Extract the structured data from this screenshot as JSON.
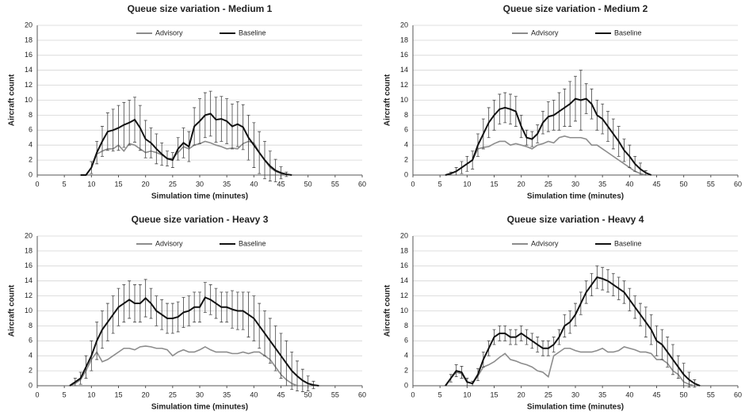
{
  "chart_data": [
    {
      "type": "line",
      "title": "Queue size variation - Medium 1",
      "xlabel": "Simulation time (minutes)",
      "ylabel": "Aircraft count",
      "xlim": [
        0,
        60
      ],
      "xticks": [
        0,
        5,
        10,
        15,
        20,
        25,
        30,
        35,
        40,
        45,
        50,
        55,
        60
      ],
      "ylim": [
        0,
        20
      ],
      "yticks": [
        0,
        2,
        4,
        6,
        8,
        10,
        12,
        14,
        16,
        18,
        20
      ],
      "grid": true,
      "legend": "top",
      "series": [
        {
          "name": "Advisory",
          "color": "#8c8c8c",
          "x": [
            9,
            10,
            11,
            12,
            13,
            14,
            15,
            16,
            17,
            18,
            19,
            20,
            21,
            22,
            23,
            24,
            25,
            26,
            27,
            28,
            29,
            30,
            31,
            32,
            33,
            34,
            35,
            36,
            37,
            38,
            39,
            40,
            41,
            42,
            43,
            44,
            45,
            46
          ],
          "values": [
            0,
            1,
            2.8,
            3.2,
            3.5,
            3.5,
            4,
            3.2,
            4.2,
            4,
            3.5,
            3,
            3.2,
            3,
            2.7,
            2.2,
            2.2,
            3,
            3.8,
            3.5,
            4,
            4.2,
            4.5,
            4.3,
            4,
            3.8,
            3.5,
            3.6,
            3.5,
            4.2,
            4.5,
            4.3,
            3,
            2,
            1,
            0.5,
            0.2,
            0
          ]
        },
        {
          "name": "Baseline",
          "color": "#111111",
          "x": [
            8,
            9,
            10,
            11,
            12,
            13,
            14,
            15,
            16,
            17,
            18,
            19,
            20,
            21,
            22,
            23,
            24,
            25,
            26,
            27,
            28,
            29,
            30,
            31,
            32,
            33,
            34,
            35,
            36,
            37,
            38,
            39,
            40,
            41,
            42,
            43,
            44,
            45,
            46,
            47
          ],
          "values": [
            0,
            0,
            1,
            3,
            4.5,
            5.8,
            6,
            6.3,
            6.7,
            7,
            7.4,
            6.3,
            4.8,
            4.3,
            3.5,
            2.8,
            2.2,
            2,
            3.5,
            4.3,
            3.8,
            6.5,
            7.2,
            8,
            8.2,
            7.4,
            7.5,
            7.2,
            6.5,
            6.8,
            6.4,
            5,
            4,
            3,
            2,
            1.2,
            0.6,
            0.3,
            0.1,
            0
          ],
          "errors": [
            0,
            0,
            0.8,
            1.5,
            2,
            2.5,
            2.8,
            3,
            3,
            3,
            3,
            3,
            2.5,
            2,
            2,
            1.5,
            1,
            1,
            1.5,
            2,
            2,
            2.5,
            3,
            3,
            3,
            3,
            3,
            3,
            3,
            3,
            3,
            3,
            3,
            2.8,
            2.5,
            2,
            1.5,
            0.8,
            0.3,
            0
          ]
        }
      ]
    },
    {
      "type": "line",
      "title": "Queue size variation - Medium 2",
      "xlabel": "Simulation time (minutes)",
      "ylabel": "Aircraft count",
      "xlim": [
        0,
        60
      ],
      "xticks": [
        0,
        5,
        10,
        15,
        20,
        25,
        30,
        35,
        40,
        45,
        50,
        55,
        60
      ],
      "ylim": [
        0,
        20
      ],
      "yticks": [
        0,
        2,
        4,
        6,
        8,
        10,
        12,
        14,
        16,
        18,
        20
      ],
      "grid": true,
      "legend": "top",
      "series": [
        {
          "name": "Advisory",
          "color": "#8c8c8c",
          "x": [
            6,
            7,
            8,
            9,
            10,
            11,
            12,
            13,
            14,
            15,
            16,
            17,
            18,
            19,
            20,
            21,
            22,
            23,
            24,
            25,
            26,
            27,
            28,
            29,
            30,
            31,
            32,
            33,
            34,
            35,
            36,
            37,
            38,
            39,
            40,
            41,
            42,
            43
          ],
          "values": [
            0,
            0.2,
            0.5,
            1,
            1.5,
            2,
            3.5,
            3.7,
            3.8,
            4.2,
            4.5,
            4.5,
            4,
            4.2,
            4,
            3.8,
            3.5,
            4,
            4.2,
            4.5,
            4.3,
            5,
            5.2,
            5,
            5,
            5,
            4.8,
            4,
            4,
            3.5,
            3,
            2.5,
            2,
            1.5,
            1,
            0.5,
            0.2,
            0
          ]
        },
        {
          "name": "Baseline",
          "color": "#111111",
          "x": [
            6,
            7,
            8,
            9,
            10,
            11,
            12,
            13,
            14,
            15,
            16,
            17,
            18,
            19,
            20,
            21,
            22,
            23,
            24,
            25,
            26,
            27,
            28,
            29,
            30,
            31,
            32,
            33,
            34,
            35,
            36,
            37,
            38,
            39,
            40,
            41,
            42,
            43,
            44
          ],
          "values": [
            0,
            0.2,
            0.5,
            1,
            1.5,
            2,
            4,
            5.5,
            7,
            8,
            8.8,
            9,
            8.8,
            8.5,
            6.5,
            5,
            4.8,
            5.5,
            7,
            7.8,
            8,
            8.5,
            9,
            9.5,
            10.2,
            10,
            10.2,
            9.5,
            8,
            7.5,
            6.5,
            5.5,
            4.5,
            3.3,
            2.5,
            1.5,
            0.8,
            0.3,
            0
          ],
          "errors": [
            0,
            0.2,
            0.5,
            0.8,
            1,
            1.2,
            1.5,
            2,
            2,
            2,
            2,
            2,
            2,
            2,
            1.5,
            1,
            1,
            1.2,
            1.5,
            2,
            2,
            2.5,
            2.5,
            3,
            3,
            4,
            2,
            2,
            2,
            2,
            2,
            2,
            2,
            1.5,
            1.5,
            1,
            0.8,
            0.3,
            0
          ]
        }
      ]
    },
    {
      "type": "line",
      "title": "Queue size variation - Heavy 3",
      "xlabel": "Simulation time (minutes)",
      "ylabel": "Aircraft count",
      "xlim": [
        0,
        60
      ],
      "xticks": [
        0,
        5,
        10,
        15,
        20,
        25,
        30,
        35,
        40,
        45,
        50,
        55,
        60
      ],
      "ylim": [
        0,
        20
      ],
      "yticks": [
        0,
        2,
        4,
        6,
        8,
        10,
        12,
        14,
        16,
        18,
        20
      ],
      "grid": true,
      "legend": "top",
      "series": [
        {
          "name": "Advisory",
          "color": "#8c8c8c",
          "x": [
            6,
            7,
            8,
            9,
            10,
            11,
            12,
            13,
            14,
            15,
            16,
            17,
            18,
            19,
            20,
            21,
            22,
            23,
            24,
            25,
            26,
            27,
            28,
            29,
            30,
            31,
            32,
            33,
            34,
            35,
            36,
            37,
            38,
            39,
            40,
            41,
            42,
            43,
            44,
            45,
            46,
            47,
            48
          ],
          "values": [
            0,
            0.3,
            0.8,
            2,
            3.5,
            4.5,
            3.2,
            3.5,
            4,
            4.5,
            5,
            5,
            4.8,
            5.2,
            5.3,
            5.2,
            5,
            5,
            4.8,
            4,
            4.5,
            4.8,
            4.5,
            4.5,
            4.8,
            5.2,
            4.8,
            4.5,
            4.5,
            4.5,
            4.3,
            4.3,
            4.5,
            4.3,
            4.5,
            4.5,
            4,
            3.5,
            2.5,
            1.5,
            0.8,
            0.3,
            0
          ]
        },
        {
          "name": "Baseline",
          "color": "#111111",
          "x": [
            6,
            7,
            8,
            9,
            10,
            11,
            12,
            13,
            14,
            15,
            16,
            17,
            18,
            19,
            20,
            21,
            22,
            23,
            24,
            25,
            26,
            27,
            28,
            29,
            30,
            31,
            32,
            33,
            34,
            35,
            36,
            37,
            38,
            39,
            40,
            41,
            42,
            43,
            44,
            45,
            46,
            47,
            48,
            49,
            50,
            51,
            52
          ],
          "values": [
            0,
            0.5,
            1,
            2.5,
            4,
            6,
            7.5,
            8.5,
            9.5,
            10.5,
            11,
            11.5,
            11,
            11,
            11.7,
            11,
            10,
            9.5,
            9,
            9,
            9.2,
            9.8,
            10,
            10.5,
            10.5,
            11.8,
            11.5,
            11,
            10.5,
            10.5,
            10.2,
            10,
            10,
            9.5,
            9,
            8,
            7,
            6,
            5,
            4,
            3,
            2,
            1.3,
            0.7,
            0.3,
            0.1,
            0
          ],
          "errors": [
            0,
            0.5,
            0.8,
            1.5,
            2,
            2.5,
            2.5,
            2.5,
            2.5,
            2.5,
            2.5,
            2.5,
            2.5,
            2.5,
            2.5,
            2,
            2,
            2,
            2,
            2,
            2,
            2,
            2,
            2,
            2,
            2,
            2,
            2,
            2,
            2,
            2.5,
            2.5,
            2.5,
            3,
            3,
            3,
            3,
            3,
            3,
            3,
            3,
            2.5,
            2,
            1.5,
            1,
            0.5,
            0
          ]
        }
      ]
    },
    {
      "type": "line",
      "title": "Queue size variation - Heavy 4",
      "xlabel": "Simulation time (minutes)",
      "ylabel": "Aircraft count",
      "xlim": [
        0,
        60
      ],
      "xticks": [
        0,
        5,
        10,
        15,
        20,
        25,
        30,
        35,
        40,
        45,
        50,
        55,
        60
      ],
      "ylim": [
        0,
        20
      ],
      "yticks": [
        0,
        2,
        4,
        6,
        8,
        10,
        12,
        14,
        16,
        18,
        20
      ],
      "grid": true,
      "legend": "top",
      "series": [
        {
          "name": "Advisory",
          "color": "#8c8c8c",
          "x": [
            6,
            7,
            8,
            9,
            10,
            11,
            12,
            13,
            14,
            15,
            16,
            17,
            18,
            19,
            20,
            21,
            22,
            23,
            24,
            25,
            26,
            27,
            28,
            29,
            30,
            31,
            32,
            33,
            34,
            35,
            36,
            37,
            38,
            39,
            40,
            41,
            42,
            43,
            44,
            45,
            46,
            47,
            48,
            49,
            50,
            51,
            52
          ],
          "values": [
            0,
            1,
            1.8,
            1.6,
            0.5,
            0.3,
            1.3,
            2.5,
            2.8,
            3.2,
            3.8,
            4.3,
            3.5,
            3.3,
            3,
            2.8,
            2.5,
            2,
            1.8,
            1.2,
            4,
            4.5,
            5,
            5,
            4.7,
            4.5,
            4.5,
            4.5,
            4.7,
            5,
            4.5,
            4.5,
            4.7,
            5.2,
            5,
            4.8,
            4.5,
            4.5,
            4.3,
            3.5,
            3.5,
            3,
            2,
            1.5,
            0.5,
            0.2,
            0
          ]
        },
        {
          "name": "Baseline",
          "color": "#111111",
          "x": [
            6,
            7,
            8,
            9,
            10,
            11,
            12,
            13,
            14,
            15,
            16,
            17,
            18,
            19,
            20,
            21,
            22,
            23,
            24,
            25,
            26,
            27,
            28,
            29,
            30,
            31,
            32,
            33,
            34,
            35,
            36,
            37,
            38,
            39,
            40,
            41,
            42,
            43,
            44,
            45,
            46,
            47,
            48,
            49,
            50,
            51,
            52,
            53
          ],
          "values": [
            0,
            1,
            2,
            1.8,
            0.5,
            0.3,
            1.5,
            3.5,
            5,
            6.5,
            7,
            7,
            6.5,
            6.5,
            7,
            6.5,
            6,
            5.5,
            5,
            5,
            5.5,
            6.5,
            8,
            8.5,
            9.5,
            11,
            12.5,
            13.5,
            14.5,
            14.3,
            14,
            13.5,
            13,
            12.5,
            11.5,
            10.5,
            9.5,
            8.5,
            7.5,
            6,
            5.5,
            4.5,
            3.5,
            2.5,
            1.5,
            0.8,
            0.3,
            0
          ],
          "errors": [
            0,
            0.5,
            0.8,
            0.8,
            0.5,
            0.3,
            0.8,
            1,
            1,
            1,
            1,
            1,
            1,
            1,
            1,
            1,
            1,
            1,
            1,
            1,
            1,
            1,
            1.5,
            1.5,
            1.5,
            1.5,
            1.5,
            1.5,
            1.5,
            1.5,
            1.5,
            1.5,
            1.5,
            1.5,
            1.5,
            1.5,
            1.5,
            2,
            2,
            2,
            2,
            2,
            2,
            1.5,
            1.5,
            1,
            0.5,
            0
          ]
        }
      ]
    }
  ]
}
